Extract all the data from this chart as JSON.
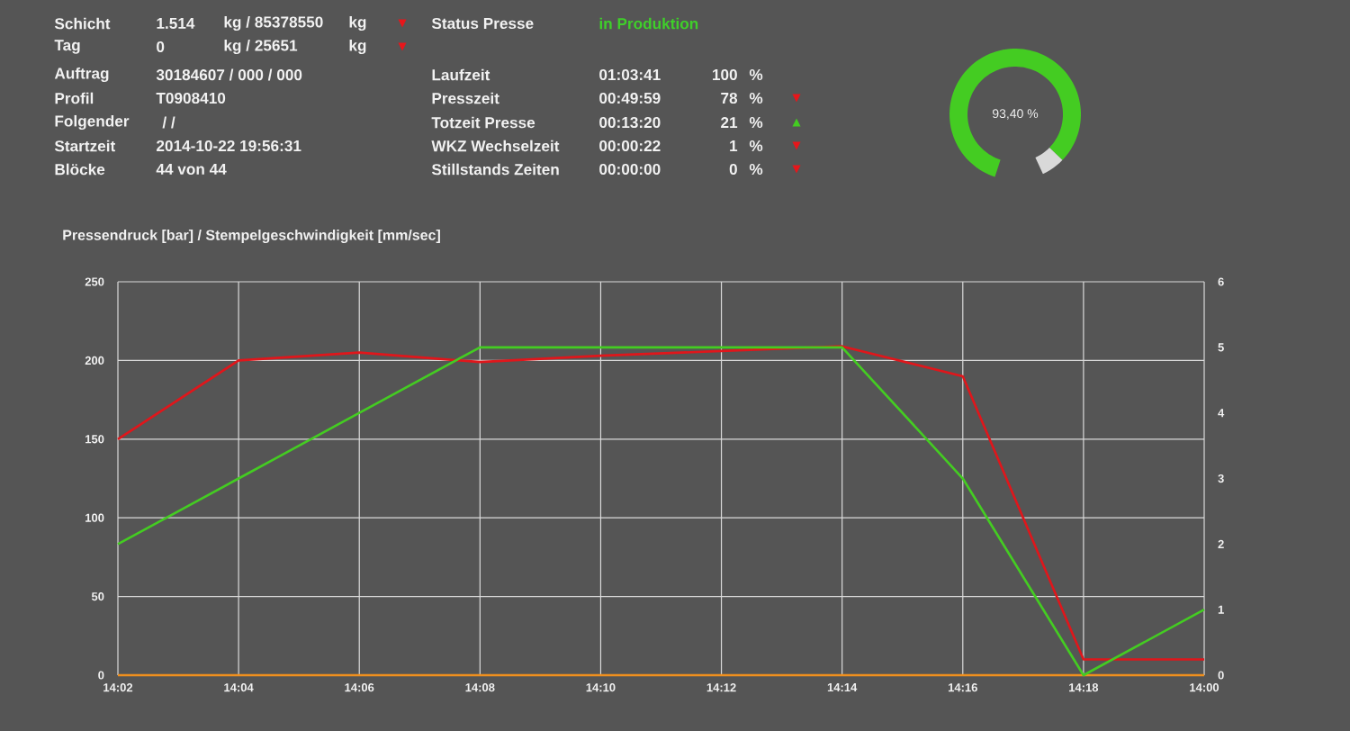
{
  "chart_data": [
    {
      "type": "other",
      "color": "#3fcf2a",
      "annotations": [
        "Schicht",
        "1.514",
        "kg / 85378550",
        "kg",
        "▼",
        "Tag",
        "0",
        "kg / 25651",
        "kg",
        "▼",
        "Auftrag",
        "30184607 / 000 / 000",
        "Profil",
        "T0908410",
        "Folgender",
        "/ /",
        "Startzeit",
        "2014-10-22 19:56:31",
        "Blöcke",
        "44  von  44",
        "Status Presse",
        "in Produktion",
        "Laufzeit",
        "01:03:41",
        "100",
        "%",
        "Presszeit",
        "00:49:59",
        "78",
        "%",
        "▼",
        "Totzeit Presse",
        "00:13:20",
        "21",
        "%",
        "▲",
        "WKZ Wechselzeit",
        "00:00:22",
        "1",
        "%",
        "▼",
        "Stillstands Zeiten",
        "00:00:00",
        "0",
        "%",
        "▼"
      ]
    },
    {
      "type": "donut",
      "categories": [
        null,
        null
      ],
      "values": [
        93.4,
        6.6
      ],
      "colors": [
        "#44cc22",
        "#d9d9d9"
      ],
      "value_labels": [
        "93,40 %",
        null
      ]
    },
    {
      "type": "line",
      "title": "Pressendruck  [bar] / Stempelgeschwindigkeit  [mm/sec]",
      "categories": [
        "14:02",
        "14:04",
        "14:06",
        "14:08",
        "14:10",
        "14:12",
        "14:14",
        "14:16",
        "14:18",
        "14:00"
      ],
      "series": [
        {
          "color": "#e0161b",
          "values": [
            150,
            200,
            205,
            199,
            203,
            206,
            209,
            190,
            10,
            10
          ]
        },
        {
          "color": "#44cc22",
          "axis": "y2",
          "values": [
            2,
            3,
            4,
            5,
            5,
            5,
            5,
            3,
            0,
            1
          ]
        },
        {
          "color": "#f0901e",
          "values": [
            0,
            0,
            0,
            0,
            0,
            0,
            0,
            0,
            0,
            0
          ]
        }
      ],
      "ylim": [
        0,
        250
      ],
      "yticks": [
        0,
        50,
        100,
        150,
        200,
        250
      ],
      "y2lim": [
        0,
        6
      ],
      "y2ticks": [
        0,
        1,
        2,
        3,
        4,
        5,
        6
      ],
      "grid": true,
      "marker": "none",
      "line_style": "solid"
    }
  ]
}
